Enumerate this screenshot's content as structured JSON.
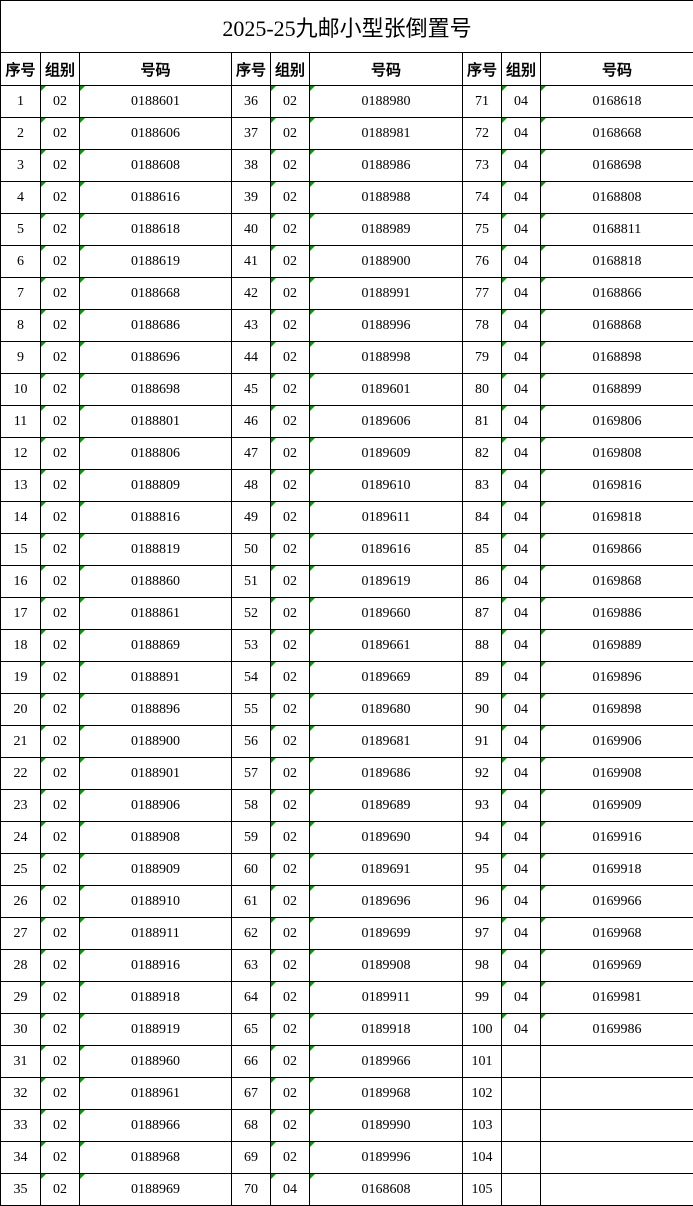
{
  "title": "2025-25九邮小型张倒置号",
  "headers": [
    "序号",
    "组别",
    "号码",
    "序号",
    "组别",
    "号码",
    "序号",
    "组别",
    "号码"
  ],
  "colors": {
    "text_marker": "#1a8a1a",
    "grid": "#000000"
  },
  "rows": [
    [
      "1",
      "02",
      "0188601",
      "36",
      "02",
      "0188980",
      "71",
      "04",
      "0168618"
    ],
    [
      "2",
      "02",
      "0188606",
      "37",
      "02",
      "0188981",
      "72",
      "04",
      "0168668"
    ],
    [
      "3",
      "02",
      "0188608",
      "38",
      "02",
      "0188986",
      "73",
      "04",
      "0168698"
    ],
    [
      "4",
      "02",
      "0188616",
      "39",
      "02",
      "0188988",
      "74",
      "04",
      "0168808"
    ],
    [
      "5",
      "02",
      "0188618",
      "40",
      "02",
      "0188989",
      "75",
      "04",
      "0168811"
    ],
    [
      "6",
      "02",
      "0188619",
      "41",
      "02",
      "0188900",
      "76",
      "04",
      "0168818"
    ],
    [
      "7",
      "02",
      "0188668",
      "42",
      "02",
      "0188991",
      "77",
      "04",
      "0168866"
    ],
    [
      "8",
      "02",
      "0188686",
      "43",
      "02",
      "0188996",
      "78",
      "04",
      "0168868"
    ],
    [
      "9",
      "02",
      "0188696",
      "44",
      "02",
      "0188998",
      "79",
      "04",
      "0168898"
    ],
    [
      "10",
      "02",
      "0188698",
      "45",
      "02",
      "0189601",
      "80",
      "04",
      "0168899"
    ],
    [
      "11",
      "02",
      "0188801",
      "46",
      "02",
      "0189606",
      "81",
      "04",
      "0169806"
    ],
    [
      "12",
      "02",
      "0188806",
      "47",
      "02",
      "0189609",
      "82",
      "04",
      "0169808"
    ],
    [
      "13",
      "02",
      "0188809",
      "48",
      "02",
      "0189610",
      "83",
      "04",
      "0169816"
    ],
    [
      "14",
      "02",
      "0188816",
      "49",
      "02",
      "0189611",
      "84",
      "04",
      "0169818"
    ],
    [
      "15",
      "02",
      "0188819",
      "50",
      "02",
      "0189616",
      "85",
      "04",
      "0169866"
    ],
    [
      "16",
      "02",
      "0188860",
      "51",
      "02",
      "0189619",
      "86",
      "04",
      "0169868"
    ],
    [
      "17",
      "02",
      "0188861",
      "52",
      "02",
      "0189660",
      "87",
      "04",
      "0169886"
    ],
    [
      "18",
      "02",
      "0188869",
      "53",
      "02",
      "0189661",
      "88",
      "04",
      "0169889"
    ],
    [
      "19",
      "02",
      "0188891",
      "54",
      "02",
      "0189669",
      "89",
      "04",
      "0169896"
    ],
    [
      "20",
      "02",
      "0188896",
      "55",
      "02",
      "0189680",
      "90",
      "04",
      "0169898"
    ],
    [
      "21",
      "02",
      "0188900",
      "56",
      "02",
      "0189681",
      "91",
      "04",
      "0169906"
    ],
    [
      "22",
      "02",
      "0188901",
      "57",
      "02",
      "0189686",
      "92",
      "04",
      "0169908"
    ],
    [
      "23",
      "02",
      "0188906",
      "58",
      "02",
      "0189689",
      "93",
      "04",
      "0169909"
    ],
    [
      "24",
      "02",
      "0188908",
      "59",
      "02",
      "0189690",
      "94",
      "04",
      "0169916"
    ],
    [
      "25",
      "02",
      "0188909",
      "60",
      "02",
      "0189691",
      "95",
      "04",
      "0169918"
    ],
    [
      "26",
      "02",
      "0188910",
      "61",
      "02",
      "0189696",
      "96",
      "04",
      "0169966"
    ],
    [
      "27",
      "02",
      "0188911",
      "62",
      "02",
      "0189699",
      "97",
      "04",
      "0169968"
    ],
    [
      "28",
      "02",
      "0188916",
      "63",
      "02",
      "0189908",
      "98",
      "04",
      "0169969"
    ],
    [
      "29",
      "02",
      "0188918",
      "64",
      "02",
      "0189911",
      "99",
      "04",
      "0169981"
    ],
    [
      "30",
      "02",
      "0188919",
      "65",
      "02",
      "0189918",
      "100",
      "04",
      "0169986"
    ],
    [
      "31",
      "02",
      "0188960",
      "66",
      "02",
      "0189966",
      "101",
      "",
      ""
    ],
    [
      "32",
      "02",
      "0188961",
      "67",
      "02",
      "0189968",
      "102",
      "",
      ""
    ],
    [
      "33",
      "02",
      "0188966",
      "68",
      "02",
      "0189990",
      "103",
      "",
      ""
    ],
    [
      "34",
      "02",
      "0188968",
      "69",
      "02",
      "0189996",
      "104",
      "",
      ""
    ],
    [
      "35",
      "02",
      "0188969",
      "70",
      "04",
      "0168608",
      "105",
      "",
      ""
    ]
  ]
}
